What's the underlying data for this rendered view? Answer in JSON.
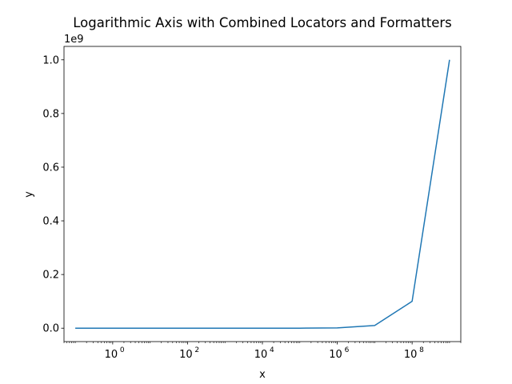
{
  "chart_data": {
    "type": "line",
    "title": "Logarithmic Axis with Combined Locators and Formatters",
    "xlabel": "x",
    "ylabel": "y",
    "x_scale": "log",
    "y_scale": "linear",
    "xlim": [
      0.05,
      2000000000
    ],
    "ylim": [
      -50000000,
      1050000000
    ],
    "y_offset_label": "1e9",
    "x_major_ticks": [
      {
        "value": 1,
        "base": "10",
        "exp": "0"
      },
      {
        "value": 100,
        "base": "10",
        "exp": "2"
      },
      {
        "value": 10000,
        "base": "10",
        "exp": "4"
      },
      {
        "value": 1000000,
        "base": "10",
        "exp": "6"
      },
      {
        "value": 100000000,
        "base": "10",
        "exp": "8"
      }
    ],
    "y_ticks": [
      {
        "value": 0,
        "label": "0.0"
      },
      {
        "value": 200000000,
        "label": "0.2"
      },
      {
        "value": 400000000,
        "label": "0.4"
      },
      {
        "value": 600000000,
        "label": "0.6"
      },
      {
        "value": 800000000,
        "label": "0.8"
      },
      {
        "value": 1000000000,
        "label": "1.0"
      }
    ],
    "grid": false,
    "legend": "none",
    "series": [
      {
        "color": "#1f77b4",
        "x": [
          0.1,
          1,
          10,
          100,
          1000,
          10000,
          100000,
          1000000,
          10000000,
          100000000,
          1000000000
        ],
        "y": [
          0.1,
          1,
          10,
          100,
          1000,
          10000,
          100000,
          1000000,
          10000000,
          100000000,
          1000000000
        ]
      }
    ]
  }
}
